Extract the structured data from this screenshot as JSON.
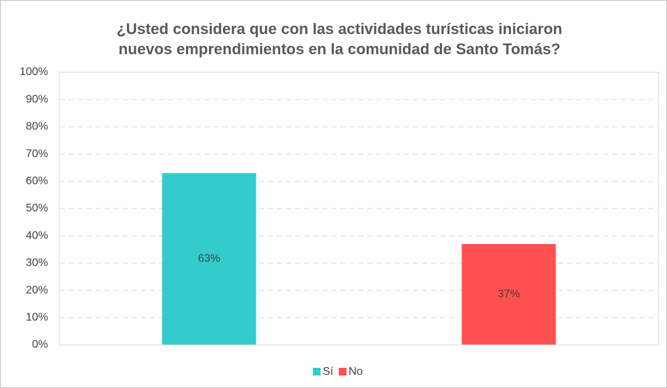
{
  "chart_data": {
    "type": "bar",
    "title": [
      "¿Usted considera que con las actividades turísticas iniciaron",
      "nuevos emprendimientos  en la comunidad de Santo Tomás?"
    ],
    "categories": [
      "Sí",
      "No"
    ],
    "values": [
      63,
      37
    ],
    "value_labels": [
      "63%",
      "37%"
    ],
    "colors": [
      "#33cccc",
      "#ff5050"
    ],
    "ylim": [
      0,
      100
    ],
    "yticks": [
      {
        "value": 0,
        "label": "0%"
      },
      {
        "value": 10,
        "label": "10%"
      },
      {
        "value": 20,
        "label": "20%"
      },
      {
        "value": 30,
        "label": "30%"
      },
      {
        "value": 40,
        "label": "40%"
      },
      {
        "value": 50,
        "label": "50%"
      },
      {
        "value": 60,
        "label": "60%"
      },
      {
        "value": 70,
        "label": "70%"
      },
      {
        "value": 80,
        "label": "80%"
      },
      {
        "value": 90,
        "label": "90%"
      },
      {
        "value": 100,
        "label": "100%"
      }
    ],
    "grid": true,
    "legend": "bottom"
  }
}
